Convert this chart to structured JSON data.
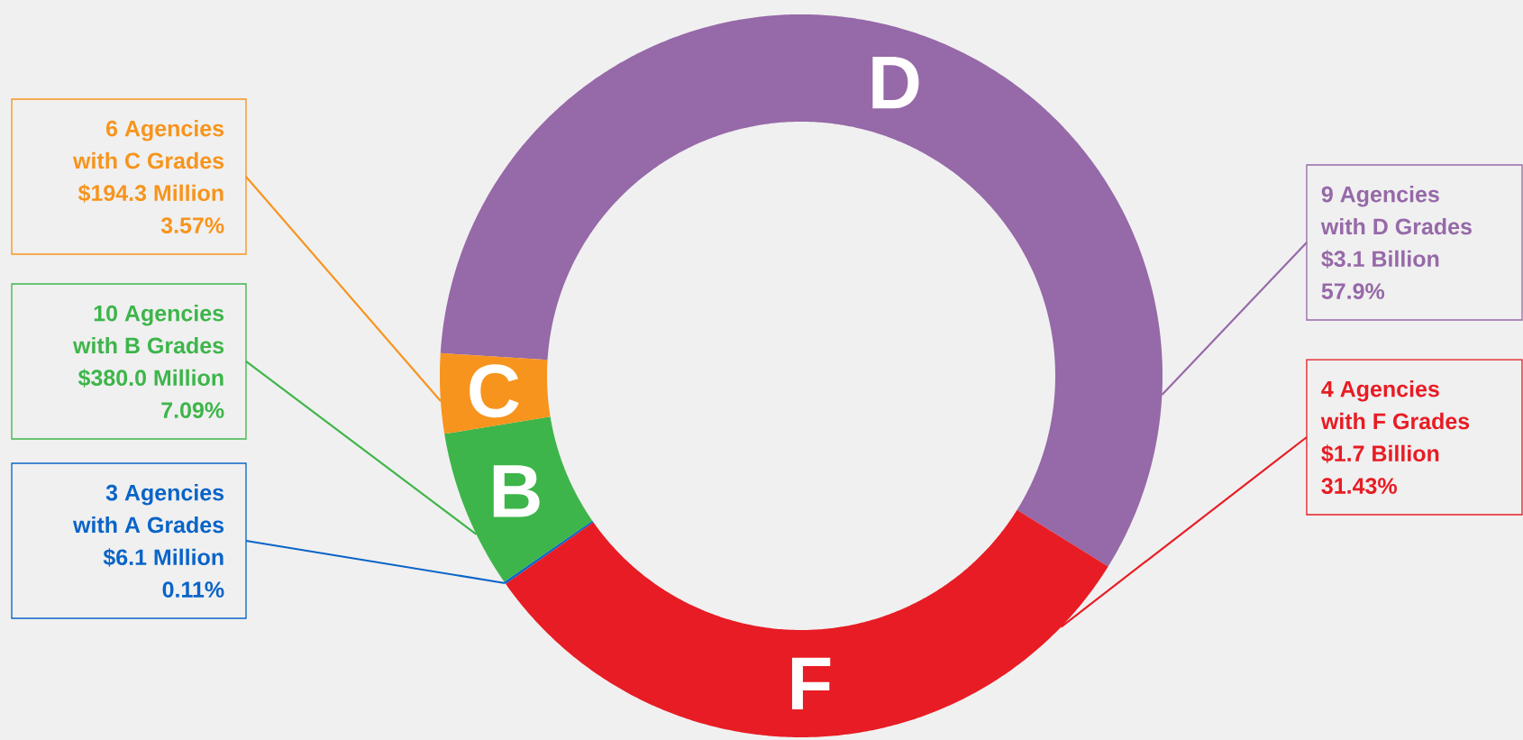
{
  "chart_data": {
    "type": "donut",
    "categories": [
      "D",
      "F",
      null,
      "B",
      "C"
    ],
    "values": [
      57.9,
      31.43,
      0.11,
      7.09,
      3.57
    ],
    "colors": [
      "#9669a8",
      "#e81c24",
      "#0a64c8",
      "#3db54a",
      "#f7941d"
    ],
    "value_labels": [
      "9 Agencies\nwith D Grades\n$3.1 Billion\n57.9%",
      "4 Agencies\nwith F Grades\n$1.7 Billion\n31.43%",
      "3 Agencies\nwith A Grades\n$6.1 Million\n0.11%",
      "10 Agencies\nwith B Grades\n$380.0 Million\n7.09%",
      "6 Agencies\nwith C Grades\n$194.3 Million\n3.57%"
    ]
  }
}
